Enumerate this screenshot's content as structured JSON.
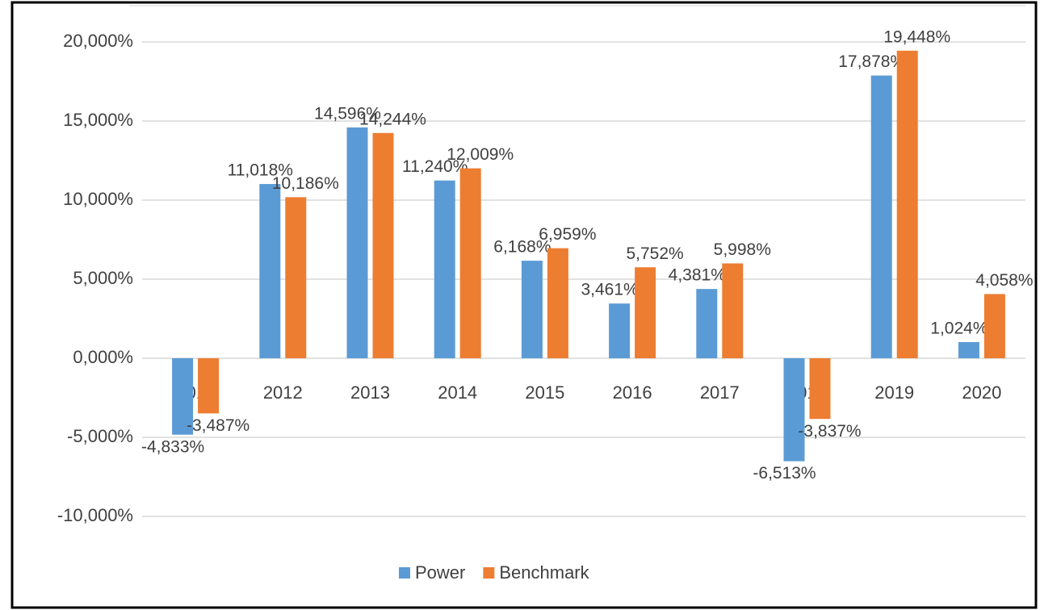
{
  "chart_data": {
    "type": "bar",
    "categories": [
      "2011",
      "2012",
      "2013",
      "2014",
      "2015",
      "2016",
      "2017",
      "2018",
      "2019",
      "2020"
    ],
    "series": [
      {
        "name": "Power",
        "color": "#5b9bd5",
        "values": [
          -4.833,
          11.018,
          14.596,
          11.24,
          6.168,
          3.461,
          4.381,
          -6.513,
          17.878,
          1.024
        ],
        "value_labels": [
          "-4,833%",
          "11,018%",
          "14,596%",
          "11,240%",
          "6,168%",
          "3,461%",
          "4,381%",
          "-6,513%",
          "17,878%",
          "1,024%"
        ]
      },
      {
        "name": "Benchmark",
        "color": "#ed7d31",
        "values": [
          -3.487,
          10.186,
          14.244,
          12.009,
          6.959,
          5.752,
          5.998,
          -3.837,
          19.448,
          4.058
        ],
        "value_labels": [
          "-3,487%",
          "10,186%",
          "14,244%",
          "12,009%",
          "6,959%",
          "5,752%",
          "5,998%",
          "-3,837%",
          "19,448%",
          "4,058%"
        ]
      }
    ],
    "ylim": [
      -10,
      20
    ],
    "yticks": [
      {
        "value": -10,
        "label": "-10,000%"
      },
      {
        "value": -5,
        "label": "-5,000%"
      },
      {
        "value": 0,
        "label": "0,000%"
      },
      {
        "value": 5,
        "label": "5,000%"
      },
      {
        "value": 10,
        "label": "10,000%"
      },
      {
        "value": 15,
        "label": "15,000%"
      },
      {
        "value": 20,
        "label": "20,000%"
      }
    ],
    "grid": true,
    "legend": "bottom"
  }
}
